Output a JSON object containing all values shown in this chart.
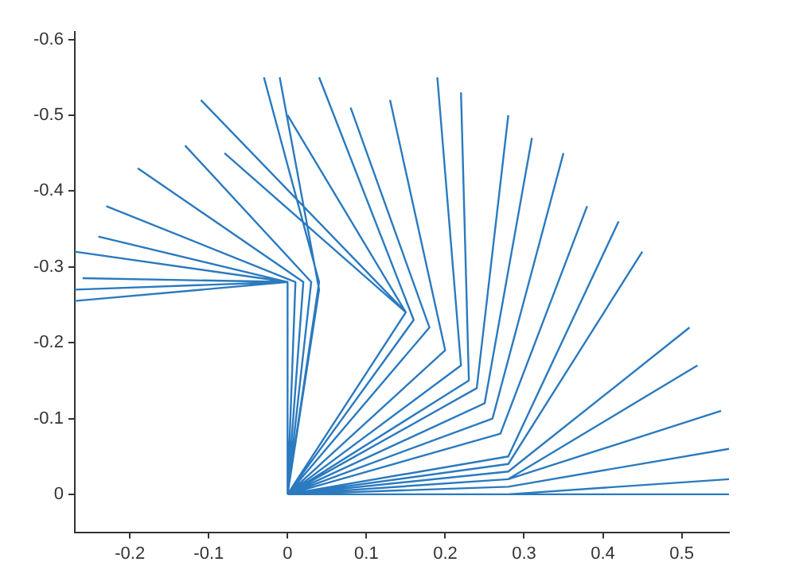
{
  "chart_data": {
    "type": "line",
    "color": "#2a7abf",
    "x": [
      0,
      0,
      -0.27,
      null,
      0,
      0,
      -0.27,
      null,
      0,
      0,
      -0.26,
      null,
      0,
      0,
      -0.27,
      null,
      0,
      0,
      -0.24,
      null,
      0,
      0.01,
      -0.23,
      null,
      0,
      0.02,
      -0.19,
      null,
      0,
      0.03,
      -0.13,
      null,
      0,
      0.04,
      -0.03,
      null,
      0,
      0.04,
      -0.01,
      null,
      0,
      0.15,
      -0.11,
      null,
      0,
      0.15,
      -0.08,
      null,
      0,
      0.15,
      0.0,
      null,
      0,
      0.16,
      0.04,
      null,
      0,
      0.18,
      0.08,
      null,
      0,
      0.2,
      0.13,
      null,
      0,
      0.22,
      0.19,
      null,
      0,
      0.23,
      0.22,
      null,
      0,
      0.24,
      0.28,
      null,
      0,
      0.25,
      0.31,
      null,
      0,
      0.26,
      0.35,
      null,
      0,
      0.27,
      0.38,
      null,
      0,
      0.28,
      0.42,
      null,
      0,
      0.28,
      0.45,
      null,
      0,
      0.28,
      0.51,
      null,
      0,
      0.28,
      0.52,
      null,
      0,
      0.28,
      0.55,
      null,
      0,
      0.28,
      0.56,
      null,
      0,
      0.28,
      0.56,
      null,
      0,
      0.28,
      0.56
    ],
    "values": [
      0,
      -0.28,
      -0.255,
      null,
      0,
      -0.28,
      -0.27,
      null,
      0,
      -0.28,
      -0.285,
      null,
      0,
      -0.28,
      -0.32,
      null,
      0,
      -0.28,
      -0.34,
      null,
      0,
      -0.28,
      -0.38,
      null,
      0,
      -0.28,
      -0.43,
      null,
      0,
      -0.28,
      -0.46,
      null,
      0,
      -0.28,
      -0.55,
      null,
      0,
      -0.27,
      -0.55,
      null,
      0,
      -0.24,
      -0.52,
      null,
      0,
      -0.24,
      -0.45,
      null,
      0,
      -0.24,
      -0.5,
      null,
      0,
      -0.23,
      -0.55,
      null,
      0,
      -0.22,
      -0.51,
      null,
      0,
      -0.19,
      -0.52,
      null,
      0,
      -0.17,
      -0.55,
      null,
      0,
      -0.15,
      -0.53,
      null,
      0,
      -0.14,
      -0.5,
      null,
      0,
      -0.12,
      -0.47,
      null,
      0,
      -0.1,
      -0.45,
      null,
      0,
      -0.08,
      -0.38,
      null,
      0,
      -0.05,
      -0.36,
      null,
      0,
      -0.04,
      -0.32,
      null,
      0,
      -0.03,
      -0.22,
      null,
      0,
      -0.02,
      -0.17,
      null,
      0,
      -0.02,
      -0.11,
      null,
      0,
      -0.01,
      -0.06,
      null,
      0,
      0,
      -0.02,
      null,
      0,
      0,
      0
    ],
    "xlim": [
      -0.27,
      0.56
    ],
    "xticks": [
      -0.2,
      -0.1,
      0,
      0.1,
      0.2,
      0.3,
      0.4,
      0.5
    ],
    "ylim": [
      0.05,
      -0.61
    ],
    "yticks": [
      0,
      -0.1,
      -0.2,
      -0.3,
      -0.4,
      -0.5,
      -0.6
    ],
    "grid": false,
    "legend": false
  }
}
